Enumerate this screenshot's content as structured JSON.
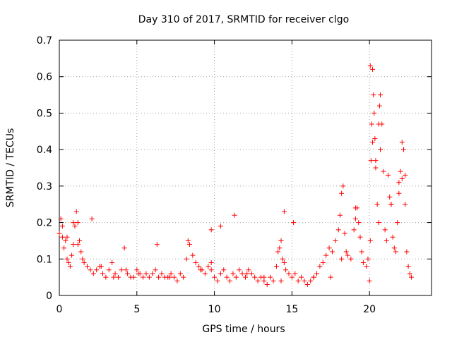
{
  "chart_data": {
    "type": "scatter",
    "title": "Day 310 of 2017, SRMTID for receiver clgo",
    "xlabel": "GPS time / hours",
    "ylabel": "SRMTID / TECUs",
    "xlim": [
      0,
      24
    ],
    "ylim": [
      0,
      0.7
    ],
    "xticks": [
      0,
      5,
      10,
      15,
      20
    ],
    "xtick_labels": [
      "0",
      "5",
      "10",
      "15",
      "20"
    ],
    "yticks": [
      0,
      0.1,
      0.2,
      0.3,
      0.4,
      0.5,
      0.6,
      0.7
    ],
    "ytick_labels": [
      "0",
      "0.1",
      "0.2",
      "0.3",
      "0.4",
      "0.5",
      "0.6",
      "0.7"
    ],
    "grid": true,
    "marker": "+",
    "color": "#ff0000",
    "series": [
      {
        "name": "SRMTID",
        "x": [
          0.0,
          0.1,
          0.2,
          0.3,
          0.4,
          0.5,
          0.6,
          0.7,
          0.8,
          0.9,
          1.0,
          1.1,
          1.2,
          1.3,
          1.4,
          1.5,
          1.6,
          1.8,
          2.0,
          2.2,
          2.4,
          2.6,
          2.8,
          3.0,
          3.2,
          3.4,
          3.6,
          3.8,
          4.0,
          4.2,
          4.4,
          4.6,
          4.8,
          5.0,
          5.2,
          5.4,
          5.6,
          5.8,
          6.0,
          6.2,
          6.4,
          6.6,
          6.8,
          7.0,
          7.2,
          7.4,
          7.6,
          7.8,
          8.0,
          8.2,
          8.4,
          8.6,
          8.8,
          9.0,
          9.2,
          9.4,
          9.6,
          9.8,
          10.0,
          10.2,
          10.4,
          10.6,
          10.8,
          11.0,
          11.2,
          11.4,
          11.6,
          11.8,
          12.0,
          12.2,
          12.4,
          12.6,
          12.8,
          13.0,
          13.2,
          13.4,
          13.6,
          13.8,
          14.0,
          14.1,
          14.2,
          14.3,
          14.4,
          14.5,
          14.6,
          14.8,
          15.0,
          15.2,
          15.4,
          15.6,
          15.8,
          16.0,
          16.2,
          16.4,
          16.6,
          16.8,
          17.0,
          17.2,
          17.4,
          17.6,
          17.8,
          18.0,
          18.1,
          18.2,
          18.3,
          18.4,
          18.5,
          18.6,
          18.8,
          19.0,
          19.1,
          19.2,
          19.3,
          19.4,
          19.5,
          19.6,
          19.8,
          19.9,
          20.0,
          20.05,
          20.1,
          20.15,
          20.2,
          20.25,
          20.3,
          20.35,
          20.4,
          20.5,
          20.6,
          20.65,
          20.7,
          20.8,
          20.9,
          21.0,
          21.1,
          21.2,
          21.3,
          21.4,
          21.5,
          21.6,
          21.7,
          21.8,
          21.9,
          22.0,
          22.1,
          22.2,
          22.3,
          22.4,
          22.5,
          22.6,
          22.7,
          0.2,
          0.5,
          0.9,
          1.2,
          2.1,
          2.7,
          3.5,
          4.3,
          5.1,
          6.3,
          7.1,
          8.3,
          9.1,
          9.8,
          9.8,
          10.4,
          11.3,
          12.1,
          13.2,
          14.3,
          14.5,
          15.1,
          16.4,
          17.5,
          18.2,
          19.1,
          20.05,
          20.2,
          20.4,
          20.6,
          20.7,
          21.4,
          21.9,
          22.1,
          22.3
        ],
        "y": [
          0.17,
          0.21,
          0.19,
          0.13,
          0.15,
          0.1,
          0.09,
          0.08,
          0.11,
          0.14,
          0.19,
          0.23,
          0.2,
          0.15,
          0.12,
          0.1,
          0.09,
          0.08,
          0.07,
          0.06,
          0.07,
          0.08,
          0.06,
          0.05,
          0.07,
          0.09,
          0.06,
          0.05,
          0.07,
          0.13,
          0.06,
          0.05,
          0.05,
          0.07,
          0.06,
          0.05,
          0.06,
          0.05,
          0.06,
          0.07,
          0.05,
          0.06,
          0.05,
          0.05,
          0.06,
          0.05,
          0.04,
          0.06,
          0.05,
          0.1,
          0.14,
          0.11,
          0.09,
          0.08,
          0.07,
          0.06,
          0.08,
          0.07,
          0.05,
          0.04,
          0.06,
          0.07,
          0.05,
          0.04,
          0.06,
          0.05,
          0.07,
          0.06,
          0.05,
          0.07,
          0.06,
          0.05,
          0.04,
          0.05,
          0.04,
          0.03,
          0.05,
          0.04,
          0.08,
          0.12,
          0.13,
          0.15,
          0.1,
          0.09,
          0.07,
          0.06,
          0.05,
          0.06,
          0.04,
          0.05,
          0.04,
          0.03,
          0.04,
          0.05,
          0.06,
          0.08,
          0.09,
          0.11,
          0.13,
          0.12,
          0.15,
          0.18,
          0.22,
          0.28,
          0.3,
          0.17,
          0.12,
          0.11,
          0.1,
          0.18,
          0.21,
          0.24,
          0.2,
          0.16,
          0.12,
          0.09,
          0.08,
          0.1,
          0.04,
          0.15,
          0.37,
          0.47,
          0.62,
          0.55,
          0.5,
          0.43,
          0.35,
          0.25,
          0.2,
          0.52,
          0.55,
          0.47,
          0.34,
          0.18,
          0.15,
          0.33,
          0.27,
          0.25,
          0.16,
          0.13,
          0.12,
          0.2,
          0.28,
          0.34,
          0.42,
          0.4,
          0.33,
          0.12,
          0.08,
          0.06,
          0.05,
          0.16,
          0.16,
          0.2,
          0.14,
          0.21,
          0.08,
          0.05,
          0.07,
          0.06,
          0.14,
          0.05,
          0.15,
          0.07,
          0.09,
          0.18,
          0.19,
          0.22,
          0.06,
          0.05,
          0.04,
          0.23,
          0.2,
          0.05,
          0.05,
          0.1,
          0.24,
          0.63,
          0.42,
          0.37,
          0.47,
          0.4,
          0.25,
          0.31,
          0.32,
          0.25
        ]
      }
    ]
  }
}
